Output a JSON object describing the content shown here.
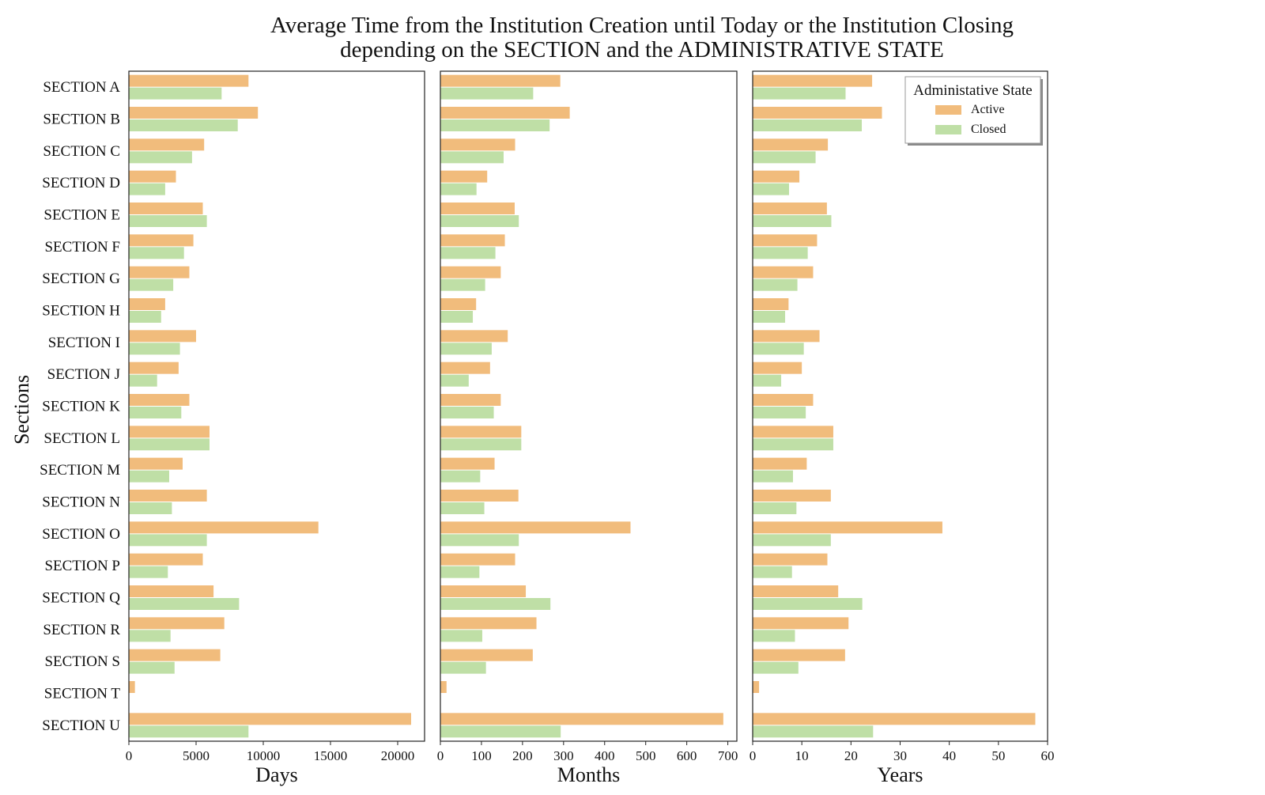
{
  "chart_data": {
    "type": "bar",
    "orientation": "horizontal",
    "title": [
      "Average Time from the Institution Creation until Today or the Institution Closing",
      "depending on the SECTION and the ADMINISTRATIVE STATE"
    ],
    "ylabel": "Sections",
    "categories": [
      "SECTION A",
      "SECTION B",
      "SECTION C",
      "SECTION D",
      "SECTION E",
      "SECTION F",
      "SECTION G",
      "SECTION H",
      "SECTION I",
      "SECTION J",
      "SECTION K",
      "SECTION L",
      "SECTION M",
      "SECTION N",
      "SECTION O",
      "SECTION P",
      "SECTION Q",
      "SECTION R",
      "SECTION S",
      "SECTION T",
      "SECTION U"
    ],
    "legend": {
      "title": "Administative State",
      "position": "top-right"
    },
    "colors": {
      "Active": "#f1bc7c",
      "Closed": "#bfdfa6"
    },
    "grid": false,
    "panels": [
      {
        "xlabel": "Days",
        "xlim": [
          0,
          22000
        ],
        "xticks": [
          0,
          5000,
          10000,
          15000,
          20000
        ],
        "series": [
          {
            "name": "Active",
            "values": [
              8900,
              9600,
              5600,
              3500,
              5500,
              4800,
              4500,
              2700,
              5000,
              3700,
              4500,
              6000,
              4000,
              5800,
              14100,
              5500,
              6300,
              7100,
              6800,
              450,
              21000
            ]
          },
          {
            "name": "Closed",
            "values": [
              6900,
              8100,
              4700,
              2700,
              5800,
              4100,
              3300,
              2400,
              3800,
              2100,
              3900,
              6000,
              3000,
              3200,
              5800,
              2900,
              8200,
              3100,
              3400,
              0,
              8900
            ]
          }
        ]
      },
      {
        "xlabel": "Months",
        "xlim": [
          0,
          722
        ],
        "xticks": [
          0,
          100,
          200,
          300,
          400,
          500,
          600,
          700
        ],
        "series": [
          {
            "name": "Active",
            "values": [
              292,
              315,
              182,
              114,
              181,
              157,
              147,
              87,
              164,
              121,
              147,
              197,
              132,
              190,
              463,
              182,
              208,
              234,
              225,
              15,
              689
            ]
          },
          {
            "name": "Closed",
            "values": [
              226,
              266,
              154,
              88,
              191,
              134,
              109,
              79,
              125,
              69,
              130,
              197,
              97,
              107,
              191,
              95,
              268,
              102,
              111,
              0,
              293
            ]
          }
        ]
      },
      {
        "xlabel": "Years",
        "xlim": [
          0,
          60
        ],
        "xticks": [
          0,
          10,
          20,
          30,
          40,
          50,
          60
        ],
        "series": [
          {
            "name": "Active",
            "values": [
              24.3,
              26.3,
              15.3,
              9.5,
              15.1,
              13.1,
              12.3,
              7.3,
              13.6,
              10.0,
              12.3,
              16.4,
              11.0,
              15.9,
              38.6,
              15.2,
              17.4,
              19.5,
              18.8,
              1.3,
              57.5
            ]
          },
          {
            "name": "Closed",
            "values": [
              18.9,
              22.2,
              12.8,
              7.4,
              16.0,
              11.2,
              9.1,
              6.6,
              10.4,
              5.8,
              10.8,
              16.4,
              8.2,
              8.9,
              15.9,
              8.0,
              22.3,
              8.6,
              9.3,
              0,
              24.5
            ]
          }
        ]
      }
    ]
  }
}
